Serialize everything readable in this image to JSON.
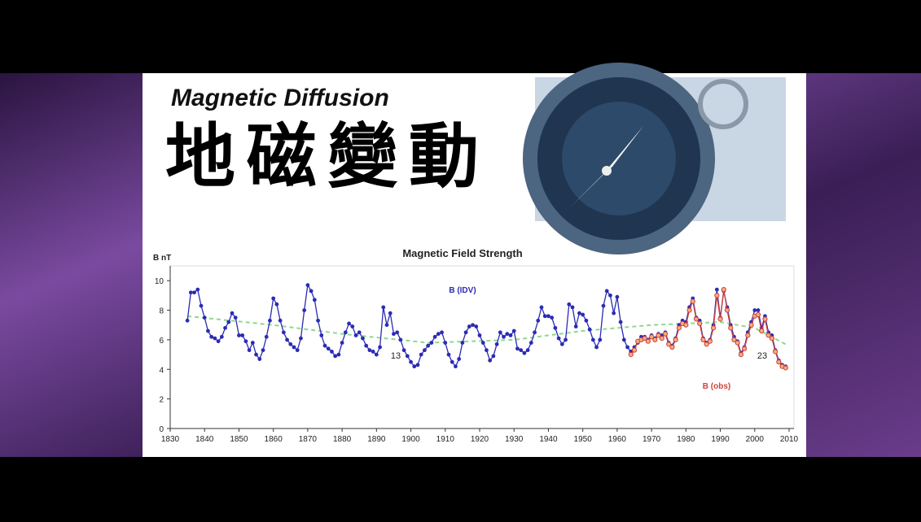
{
  "slide": {
    "title": "Magnetic Diffusion",
    "subtitle": "地磁變動"
  },
  "chart_data": {
    "type": "line",
    "title": "Magnetic Field Strength",
    "y_label": "B nT",
    "xlim": [
      1830,
      2010
    ],
    "xticks": [
      1830,
      1840,
      1850,
      1860,
      1870,
      1880,
      1890,
      1900,
      1910,
      1920,
      1930,
      1940,
      1950,
      1960,
      1970,
      1980,
      1990,
      2000,
      2010
    ],
    "ylim": [
      0,
      11
    ],
    "yticks": [
      0,
      2,
      4,
      6,
      8,
      10
    ],
    "grid": false,
    "markers": true,
    "annotations": [
      "13",
      "23"
    ],
    "series": [
      {
        "name": "B (IDV)",
        "color": "#2b2bb5",
        "x": [
          1835,
          1836,
          1837,
          1838,
          1839,
          1840,
          1841,
          1842,
          1843,
          1844,
          1845,
          1846,
          1847,
          1848,
          1849,
          1850,
          1851,
          1852,
          1853,
          1854,
          1855,
          1856,
          1857,
          1858,
          1859,
          1860,
          1861,
          1862,
          1863,
          1864,
          1865,
          1866,
          1867,
          1868,
          1869,
          1870,
          1871,
          1872,
          1873,
          1874,
          1875,
          1876,
          1877,
          1878,
          1879,
          1880,
          1881,
          1882,
          1883,
          1884,
          1885,
          1886,
          1887,
          1888,
          1889,
          1890,
          1891,
          1892,
          1893,
          1894,
          1895,
          1896,
          1897,
          1898,
          1899,
          1900,
          1901,
          1902,
          1903,
          1904,
          1905,
          1906,
          1907,
          1908,
          1909,
          1910,
          1911,
          1912,
          1913,
          1914,
          1915,
          1916,
          1917,
          1918,
          1919,
          1920,
          1921,
          1922,
          1923,
          1924,
          1925,
          1926,
          1927,
          1928,
          1929,
          1930,
          1931,
          1932,
          1933,
          1934,
          1935,
          1936,
          1937,
          1938,
          1939,
          1940,
          1941,
          1942,
          1943,
          1944,
          1945,
          1946,
          1947,
          1948,
          1949,
          1950,
          1951,
          1952,
          1953,
          1954,
          1955,
          1956,
          1957,
          1958,
          1959,
          1960,
          1961,
          1962,
          1963,
          1964,
          1965,
          1966,
          1967,
          1968,
          1969,
          1970,
          1971,
          1972,
          1973,
          1974,
          1975,
          1976,
          1977,
          1978,
          1979,
          1980,
          1981,
          1982,
          1983,
          1984,
          1985,
          1986,
          1987,
          1988,
          1989,
          1990,
          1991,
          1992,
          1993,
          1994,
          1995,
          1996,
          1997,
          1998,
          1999,
          2000,
          2001,
          2002,
          2003,
          2004,
          2005,
          2006,
          2007,
          2008,
          2009
        ],
        "values": [
          7.3,
          9.2,
          9.2,
          9.4,
          8.3,
          7.5,
          6.6,
          6.2,
          6.1,
          5.9,
          6.2,
          6.8,
          7.2,
          7.8,
          7.5,
          6.3,
          6.3,
          5.9,
          5.3,
          5.8,
          5.0,
          4.7,
          5.3,
          6.2,
          7.3,
          8.8,
          8.4,
          7.3,
          6.5,
          6.0,
          5.7,
          5.5,
          5.3,
          6.1,
          8.0,
          9.7,
          9.3,
          8.7,
          7.3,
          6.3,
          5.6,
          5.4,
          5.2,
          4.9,
          5.0,
          5.8,
          6.5,
          7.1,
          6.9,
          6.3,
          6.5,
          6.1,
          5.6,
          5.3,
          5.2,
          5.0,
          5.5,
          8.2,
          7.0,
          7.8,
          6.4,
          6.5,
          6.0,
          5.3,
          4.9,
          4.5,
          4.2,
          4.3,
          5.0,
          5.3,
          5.6,
          5.8,
          6.2,
          6.4,
          6.5,
          5.8,
          5.0,
          4.5,
          4.2,
          4.7,
          5.8,
          6.5,
          6.9,
          7.0,
          6.9,
          6.3,
          5.8,
          5.3,
          4.6,
          4.9,
          5.7,
          6.5,
          6.2,
          6.4,
          6.3,
          6.6,
          5.4,
          5.3,
          5.1,
          5.3,
          5.8,
          6.5,
          7.3,
          8.2,
          7.6,
          7.6,
          7.5,
          6.8,
          6.1,
          5.7,
          6.0,
          8.4,
          8.2,
          6.9,
          7.8,
          7.7,
          7.3,
          6.7,
          6.0,
          5.5,
          6.0,
          8.3,
          9.3,
          9.0,
          7.8,
          8.9,
          7.2,
          6.0,
          5.5,
          5.2,
          5.5,
          5.8,
          6.2,
          6.2,
          6.0,
          6.3,
          6.1,
          6.4,
          6.3,
          6.5,
          5.8,
          5.6,
          6.1,
          7.0,
          7.3,
          7.2,
          8.2,
          8.8,
          7.5,
          7.3,
          6.1,
          5.8,
          6.0,
          7.0,
          9.4,
          7.5,
          9.3,
          8.2,
          7.0,
          6.2,
          5.9,
          5.1,
          5.5,
          6.5,
          7.2,
          8.0,
          8.0,
          6.8,
          7.6,
          6.5,
          6.3,
          5.3,
          4.6,
          4.3,
          4.2
        ]
      },
      {
        "name": "B (obs)",
        "color": "#d0403a",
        "x": [
          1964,
          1965,
          1966,
          1967,
          1968,
          1969,
          1970,
          1971,
          1972,
          1973,
          1974,
          1975,
          1976,
          1977,
          1978,
          1979,
          1980,
          1981,
          1982,
          1983,
          1984,
          1985,
          1986,
          1987,
          1988,
          1989,
          1990,
          1991,
          1992,
          1993,
          1994,
          1995,
          1996,
          1997,
          1998,
          1999,
          2000,
          2001,
          2002,
          2003,
          2004,
          2005,
          2006,
          2007,
          2008,
          2009
        ],
        "values": [
          5.0,
          5.3,
          5.9,
          6.0,
          6.1,
          5.9,
          6.2,
          6.0,
          6.3,
          6.1,
          6.4,
          5.7,
          5.5,
          6.0,
          6.8,
          7.1,
          7.0,
          8.0,
          8.6,
          7.4,
          7.1,
          6.0,
          5.7,
          5.9,
          6.8,
          9.0,
          7.4,
          9.4,
          8.0,
          6.8,
          6.0,
          5.8,
          5.0,
          5.4,
          6.3,
          7.0,
          7.6,
          7.7,
          6.6,
          7.4,
          6.3,
          6.1,
          5.2,
          4.5,
          4.2,
          4.1
        ]
      },
      {
        "color": "#8fd88f",
        "dashed": true,
        "x": [
          1835,
          1860,
          1880,
          1905,
          1930,
          1950,
          1970,
          1990,
          2000,
          2009
        ],
        "values": [
          7.6,
          7.0,
          6.4,
          5.8,
          6.0,
          6.6,
          7.0,
          7.2,
          6.8,
          5.7
        ]
      }
    ]
  }
}
